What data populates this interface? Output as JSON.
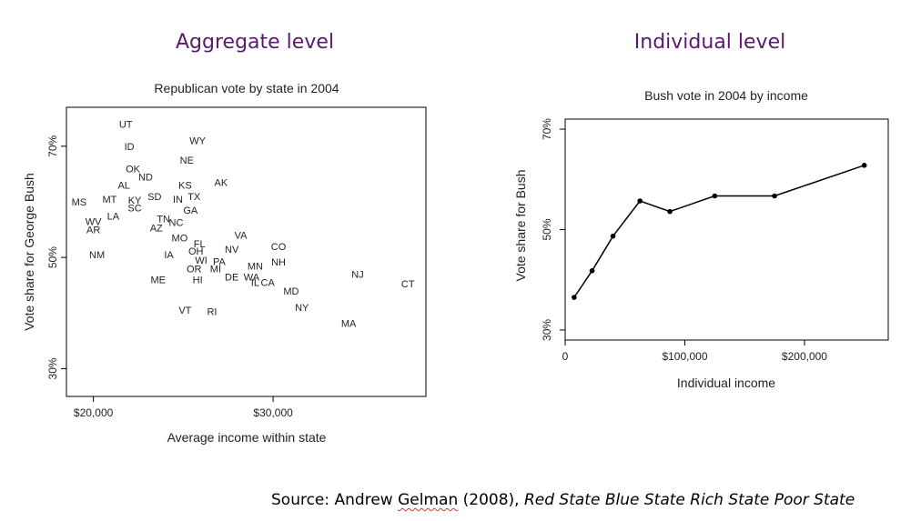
{
  "headings": {
    "left": "Aggregate level",
    "right": "Individual level"
  },
  "source": {
    "prefix": "Source: Andrew ",
    "author": "Gelman",
    "year": " (2008), ",
    "book": "Red State Blue State Rich State Poor State"
  },
  "chart_data": [
    {
      "type": "scatter",
      "title": "Republican vote by state in 2004",
      "xlabel": "Average income within state",
      "ylabel": "Vote share for George Bush",
      "xlim": [
        18500,
        38500
      ],
      "ylim": [
        25,
        77
      ],
      "xticks": [
        {
          "value": 20000,
          "label": "$20,000"
        },
        {
          "value": 30000,
          "label": "$30,000"
        }
      ],
      "yticks": [
        {
          "value": 30,
          "label": "30%"
        },
        {
          "value": 50,
          "label": "50%"
        },
        {
          "value": 70,
          "label": "70%"
        }
      ],
      "points": [
        {
          "label": "UT",
          "x": 21800,
          "y": 74
        },
        {
          "label": "ID",
          "x": 22000,
          "y": 70
        },
        {
          "label": "WY",
          "x": 25800,
          "y": 71
        },
        {
          "label": "NE",
          "x": 25200,
          "y": 67.5
        },
        {
          "label": "OK",
          "x": 22200,
          "y": 66
        },
        {
          "label": "ND",
          "x": 22900,
          "y": 64.5
        },
        {
          "label": "AL",
          "x": 21700,
          "y": 63
        },
        {
          "label": "KS",
          "x": 25100,
          "y": 63
        },
        {
          "label": "AK",
          "x": 27100,
          "y": 63.5
        },
        {
          "label": "TX",
          "x": 25600,
          "y": 61
        },
        {
          "label": "MT",
          "x": 20900,
          "y": 60.5
        },
        {
          "label": "KY",
          "x": 22300,
          "y": 60.3
        },
        {
          "label": "SD",
          "x": 23400,
          "y": 61
        },
        {
          "label": "IN",
          "x": 24700,
          "y": 60.5
        },
        {
          "label": "MS",
          "x": 19200,
          "y": 60
        },
        {
          "label": "SC",
          "x": 22300,
          "y": 58.9
        },
        {
          "label": "GA",
          "x": 25400,
          "y": 58.5
        },
        {
          "label": "LA",
          "x": 21100,
          "y": 57.5
        },
        {
          "label": "TN",
          "x": 23900,
          "y": 57
        },
        {
          "label": "NC",
          "x": 24600,
          "y": 56.3
        },
        {
          "label": "WV",
          "x": 20000,
          "y": 56.5
        },
        {
          "label": "AR",
          "x": 20000,
          "y": 55
        },
        {
          "label": "AZ",
          "x": 23500,
          "y": 55.3
        },
        {
          "label": "MO",
          "x": 24800,
          "y": 53.5
        },
        {
          "label": "VA",
          "x": 28200,
          "y": 54
        },
        {
          "label": "FL",
          "x": 25900,
          "y": 52.5
        },
        {
          "label": "CO",
          "x": 30300,
          "y": 52
        },
        {
          "label": "OH",
          "x": 25700,
          "y": 51.2
        },
        {
          "label": "NV",
          "x": 27700,
          "y": 51.5
        },
        {
          "label": "NM",
          "x": 20200,
          "y": 50.5
        },
        {
          "label": "IA",
          "x": 24200,
          "y": 50.5
        },
        {
          "label": "WI",
          "x": 26000,
          "y": 49.5
        },
        {
          "label": "PA",
          "x": 27000,
          "y": 49.3
        },
        {
          "label": "NH",
          "x": 30300,
          "y": 49.2
        },
        {
          "label": "OR",
          "x": 25600,
          "y": 48
        },
        {
          "label": "MI",
          "x": 26800,
          "y": 48
        },
        {
          "label": "MN",
          "x": 29000,
          "y": 48.5
        },
        {
          "label": "NJ",
          "x": 34700,
          "y": 47
        },
        {
          "label": "DE",
          "x": 27700,
          "y": 46.5
        },
        {
          "label": "WA",
          "x": 28800,
          "y": 46.5
        },
        {
          "label": "ME",
          "x": 23600,
          "y": 46
        },
        {
          "label": "HI",
          "x": 25800,
          "y": 46
        },
        {
          "label": "IL",
          "x": 29000,
          "y": 45.5
        },
        {
          "label": "CA",
          "x": 29700,
          "y": 45.5
        },
        {
          "label": "CT",
          "x": 37500,
          "y": 45.3
        },
        {
          "label": "MD",
          "x": 31000,
          "y": 44
        },
        {
          "label": "VT",
          "x": 25100,
          "y": 40.5
        },
        {
          "label": "RI",
          "x": 26600,
          "y": 40.3
        },
        {
          "label": "NY",
          "x": 31600,
          "y": 41
        },
        {
          "label": "MA",
          "x": 34200,
          "y": 38.2
        }
      ]
    },
    {
      "type": "line",
      "title": "Bush vote in 2004 by income",
      "xlabel": "Individual income",
      "ylabel": "Vote share for Bush",
      "xlim": [
        0,
        270000
      ],
      "ylim": [
        28,
        72
      ],
      "xticks": [
        {
          "value": 0,
          "label": "0"
        },
        {
          "value": 100000,
          "label": "$100,000"
        },
        {
          "value": 200000,
          "label": "$200,000"
        }
      ],
      "yticks": [
        {
          "value": 30,
          "label": "30%"
        },
        {
          "value": 50,
          "label": "50%"
        },
        {
          "value": 70,
          "label": "70%"
        }
      ],
      "x": [
        7500,
        22500,
        40000,
        62500,
        87500,
        125000,
        175000,
        250000
      ],
      "y": [
        36.5,
        41.8,
        48.7,
        55.7,
        53.6,
        56.7,
        56.7,
        62.8
      ]
    }
  ]
}
